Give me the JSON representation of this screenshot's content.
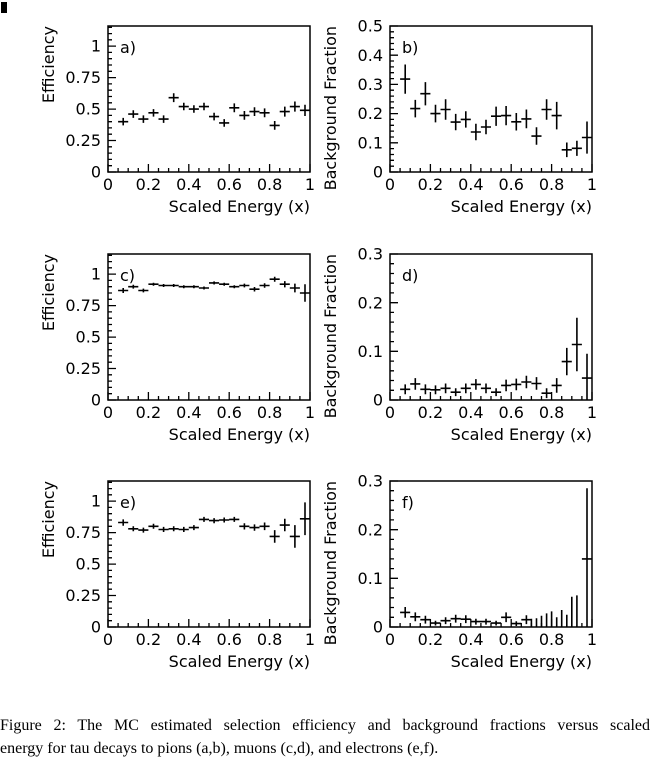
{
  "figure": {
    "ink_color": "#000000",
    "background_color": "#ffffff",
    "caption_lines": [
      "Figure 2:  The MC estimated selection efficiency and background fractions versus scaled",
      "energy for tau decays to pions (a,b), muons (c,d), and electrons (e,f)."
    ]
  },
  "chart_data": [
    {
      "id": "a",
      "panel_label": "a)",
      "type": "scatter",
      "marker": "cross-with-error-bars",
      "xlabel": "Scaled Energy (x)",
      "ylabel": "Efficiency",
      "xlim": [
        0,
        1
      ],
      "ylim": [
        0,
        1.16
      ],
      "x_major_ticks": [
        0,
        0.2,
        0.4,
        0.6,
        0.8,
        1
      ],
      "x_tick_labels": [
        "0",
        "0.2",
        "0.4",
        "0.6",
        "0.8",
        "1"
      ],
      "x_minor_step": 0.05,
      "y_major_ticks": [
        0,
        0.25,
        0.5,
        0.75,
        1
      ],
      "y_tick_labels": [
        "0",
        "0.25",
        "0.5",
        "0.75",
        "1"
      ],
      "y_minor_step": 0.05,
      "grid": false,
      "legend": null,
      "default_xerr": 0.025,
      "points": [
        [
          0.075,
          0.4,
          0.03
        ],
        [
          0.125,
          0.46,
          0.03
        ],
        [
          0.175,
          0.42,
          0.03
        ],
        [
          0.225,
          0.47,
          0.03
        ],
        [
          0.275,
          0.42,
          0.03
        ],
        [
          0.325,
          0.59,
          0.035
        ],
        [
          0.375,
          0.52,
          0.03
        ],
        [
          0.425,
          0.5,
          0.03
        ],
        [
          0.475,
          0.52,
          0.03
        ],
        [
          0.525,
          0.44,
          0.03
        ],
        [
          0.575,
          0.39,
          0.03
        ],
        [
          0.625,
          0.51,
          0.035
        ],
        [
          0.675,
          0.45,
          0.035
        ],
        [
          0.725,
          0.48,
          0.035
        ],
        [
          0.775,
          0.47,
          0.035
        ],
        [
          0.825,
          0.37,
          0.035
        ],
        [
          0.875,
          0.48,
          0.04
        ],
        [
          0.925,
          0.52,
          0.04
        ],
        [
          0.975,
          0.49,
          0.045
        ]
      ]
    },
    {
      "id": "b",
      "panel_label": "b)",
      "type": "scatter",
      "marker": "cross-with-error-bars",
      "xlabel": "Scaled Energy (x)",
      "ylabel": "Background Fraction",
      "xlim": [
        0,
        1
      ],
      "ylim": [
        0,
        0.5
      ],
      "x_major_ticks": [
        0,
        0.2,
        0.4,
        0.6,
        0.8,
        1
      ],
      "x_tick_labels": [
        "0",
        "0.2",
        "0.4",
        "0.6",
        "0.8",
        "1"
      ],
      "x_minor_step": 0.05,
      "y_major_ticks": [
        0,
        0.1,
        0.2,
        0.3,
        0.4,
        0.5
      ],
      "y_tick_labels": [
        "0",
        "0.1",
        "0.2",
        "0.3",
        "0.4",
        "0.5"
      ],
      "y_minor_step": 0.02,
      "grid": false,
      "legend": null,
      "default_xerr": 0.025,
      "points": [
        [
          0.075,
          0.318,
          0.05
        ],
        [
          0.125,
          0.217,
          0.03
        ],
        [
          0.175,
          0.268,
          0.04
        ],
        [
          0.225,
          0.2,
          0.03
        ],
        [
          0.275,
          0.214,
          0.035
        ],
        [
          0.325,
          0.171,
          0.028
        ],
        [
          0.375,
          0.18,
          0.028
        ],
        [
          0.425,
          0.137,
          0.028
        ],
        [
          0.475,
          0.154,
          0.025
        ],
        [
          0.525,
          0.191,
          0.033
        ],
        [
          0.575,
          0.193,
          0.033
        ],
        [
          0.625,
          0.172,
          0.03
        ],
        [
          0.675,
          0.182,
          0.032
        ],
        [
          0.725,
          0.123,
          0.03
        ],
        [
          0.775,
          0.214,
          0.035
        ],
        [
          0.825,
          0.193,
          0.047
        ],
        [
          0.875,
          0.076,
          0.025
        ],
        [
          0.925,
          0.081,
          0.026
        ],
        [
          0.975,
          0.118,
          0.055
        ]
      ]
    },
    {
      "id": "c",
      "panel_label": "c)",
      "type": "scatter",
      "marker": "cross-with-error-bars",
      "xlabel": "Scaled Energy (x)",
      "ylabel": "Efficiency",
      "xlim": [
        0,
        1
      ],
      "ylim": [
        0,
        1.16
      ],
      "x_major_ticks": [
        0,
        0.2,
        0.4,
        0.6,
        0.8,
        1
      ],
      "x_tick_labels": [
        "0",
        "0.2",
        "0.4",
        "0.6",
        "0.8",
        "1"
      ],
      "x_minor_step": 0.05,
      "y_major_ticks": [
        0,
        0.25,
        0.5,
        0.75,
        1
      ],
      "y_tick_labels": [
        "0",
        "0.25",
        "0.5",
        "0.75",
        "1"
      ],
      "y_minor_step": 0.05,
      "grid": false,
      "legend": null,
      "default_xerr": 0.025,
      "points": [
        [
          0.075,
          0.87,
          0.02
        ],
        [
          0.125,
          0.9,
          0.015
        ],
        [
          0.175,
          0.87,
          0.015
        ],
        [
          0.225,
          0.92,
          0.012
        ],
        [
          0.275,
          0.91,
          0.012
        ],
        [
          0.325,
          0.91,
          0.012
        ],
        [
          0.375,
          0.9,
          0.012
        ],
        [
          0.425,
          0.9,
          0.012
        ],
        [
          0.475,
          0.89,
          0.012
        ],
        [
          0.525,
          0.93,
          0.012
        ],
        [
          0.575,
          0.92,
          0.012
        ],
        [
          0.625,
          0.9,
          0.012
        ],
        [
          0.675,
          0.91,
          0.015
        ],
        [
          0.725,
          0.88,
          0.018
        ],
        [
          0.775,
          0.91,
          0.018
        ],
        [
          0.825,
          0.96,
          0.02
        ],
        [
          0.875,
          0.92,
          0.025
        ],
        [
          0.925,
          0.89,
          0.035
        ],
        [
          0.975,
          0.85,
          0.07
        ]
      ]
    },
    {
      "id": "d",
      "panel_label": "d)",
      "type": "scatter",
      "marker": "cross-with-error-bars",
      "xlabel": "Scaled Energy (x)",
      "ylabel": "Background Fraction",
      "xlim": [
        0,
        1
      ],
      "ylim": [
        0,
        0.3
      ],
      "x_major_ticks": [
        0,
        0.2,
        0.4,
        0.6,
        0.8,
        1
      ],
      "x_tick_labels": [
        "0",
        "0.2",
        "0.4",
        "0.6",
        "0.8",
        "1"
      ],
      "x_minor_step": 0.05,
      "y_major_ticks": [
        0,
        0.1,
        0.2,
        0.3
      ],
      "y_tick_labels": [
        "0",
        "0.1",
        "0.2",
        "0.3"
      ],
      "y_minor_step": 0.02,
      "grid": false,
      "legend": null,
      "default_xerr": 0.025,
      "points": [
        [
          0.075,
          0.022,
          0.01
        ],
        [
          0.125,
          0.033,
          0.012
        ],
        [
          0.175,
          0.022,
          0.01
        ],
        [
          0.225,
          0.021,
          0.009
        ],
        [
          0.275,
          0.024,
          0.01
        ],
        [
          0.325,
          0.016,
          0.008
        ],
        [
          0.375,
          0.024,
          0.01
        ],
        [
          0.425,
          0.032,
          0.011
        ],
        [
          0.475,
          0.024,
          0.01
        ],
        [
          0.525,
          0.016,
          0.008
        ],
        [
          0.575,
          0.03,
          0.012
        ],
        [
          0.625,
          0.032,
          0.012
        ],
        [
          0.675,
          0.037,
          0.013
        ],
        [
          0.725,
          0.034,
          0.013
        ],
        [
          0.775,
          0.014,
          0.01
        ],
        [
          0.825,
          0.03,
          0.015
        ],
        [
          0.875,
          0.079,
          0.028
        ],
        [
          0.925,
          0.114,
          0.055
        ],
        [
          0.975,
          0.045,
          0.05
        ]
      ]
    },
    {
      "id": "e",
      "panel_label": "e)",
      "type": "scatter",
      "marker": "cross-with-error-bars",
      "xlabel": "Scaled Energy (x)",
      "ylabel": "Efficiency",
      "xlim": [
        0,
        1
      ],
      "ylim": [
        0,
        1.16
      ],
      "x_major_ticks": [
        0,
        0.2,
        0.4,
        0.6,
        0.8,
        1
      ],
      "x_tick_labels": [
        "0",
        "0.2",
        "0.4",
        "0.6",
        "0.8",
        "1"
      ],
      "x_minor_step": 0.05,
      "y_major_ticks": [
        0,
        0.25,
        0.5,
        0.75,
        1
      ],
      "y_tick_labels": [
        "0",
        "0.25",
        "0.5",
        "0.75",
        "1"
      ],
      "y_minor_step": 0.05,
      "grid": false,
      "legend": null,
      "default_xerr": 0.025,
      "points": [
        [
          0.075,
          0.83,
          0.025
        ],
        [
          0.125,
          0.78,
          0.02
        ],
        [
          0.175,
          0.77,
          0.02
        ],
        [
          0.225,
          0.8,
          0.02
        ],
        [
          0.275,
          0.775,
          0.02
        ],
        [
          0.325,
          0.78,
          0.02
        ],
        [
          0.375,
          0.775,
          0.02
        ],
        [
          0.425,
          0.79,
          0.02
        ],
        [
          0.475,
          0.855,
          0.02
        ],
        [
          0.525,
          0.845,
          0.02
        ],
        [
          0.575,
          0.85,
          0.02
        ],
        [
          0.625,
          0.855,
          0.02
        ],
        [
          0.675,
          0.8,
          0.025
        ],
        [
          0.725,
          0.79,
          0.025
        ],
        [
          0.775,
          0.8,
          0.03
        ],
        [
          0.825,
          0.72,
          0.05
        ],
        [
          0.875,
          0.81,
          0.05
        ],
        [
          0.925,
          0.72,
          0.09
        ],
        [
          0.975,
          0.86,
          0.13
        ]
      ]
    },
    {
      "id": "f",
      "panel_label": "f)",
      "type": "scatter",
      "marker": "cross-with-error-bars",
      "xlabel": "Scaled Energy (x)",
      "ylabel": "Background Fraction",
      "xlim": [
        0,
        1
      ],
      "ylim": [
        0,
        0.3
      ],
      "x_major_ticks": [
        0,
        0.2,
        0.4,
        0.6,
        0.8,
        1
      ],
      "x_tick_labels": [
        "0",
        "0.2",
        "0.4",
        "0.6",
        "0.8",
        "1"
      ],
      "x_minor_step": 0.05,
      "y_major_ticks": [
        0,
        0.1,
        0.2,
        0.3
      ],
      "y_tick_labels": [
        "0",
        "0.1",
        "0.2",
        "0.3"
      ],
      "y_minor_step": 0.02,
      "grid": false,
      "legend": null,
      "default_xerr": 0.025,
      "points": [
        [
          0.075,
          0.03,
          0.011
        ],
        [
          0.125,
          0.021,
          0.009
        ],
        [
          0.175,
          0.015,
          0.008
        ],
        [
          0.225,
          0.008,
          0.005
        ],
        [
          0.275,
          0.013,
          0.007
        ],
        [
          0.325,
          0.017,
          0.008
        ],
        [
          0.375,
          0.016,
          0.008
        ],
        [
          0.425,
          0.011,
          0.006
        ],
        [
          0.475,
          0.011,
          0.006
        ],
        [
          0.525,
          0.008,
          0.005
        ],
        [
          0.575,
          0.02,
          0.01
        ],
        [
          0.625,
          0.007,
          0.005
        ],
        [
          0.675,
          0.015,
          0.009
        ],
        [
          0.7,
          0.005,
          0.012,
          0
        ],
        [
          0.725,
          0.005,
          0.013,
          0
        ],
        [
          0.75,
          0.008,
          0.015,
          0
        ],
        [
          0.775,
          0.01,
          0.018,
          0
        ],
        [
          0.8,
          0.012,
          0.02,
          0
        ],
        [
          0.825,
          0.005,
          0.015,
          0
        ],
        [
          0.85,
          0.01,
          0.025,
          0
        ],
        [
          0.875,
          0.005,
          0.02,
          0
        ],
        [
          0.9,
          0.03,
          0.032,
          0
        ],
        [
          0.925,
          0.015,
          0.05,
          0
        ],
        [
          0.975,
          0.14,
          0.145
        ]
      ]
    }
  ]
}
